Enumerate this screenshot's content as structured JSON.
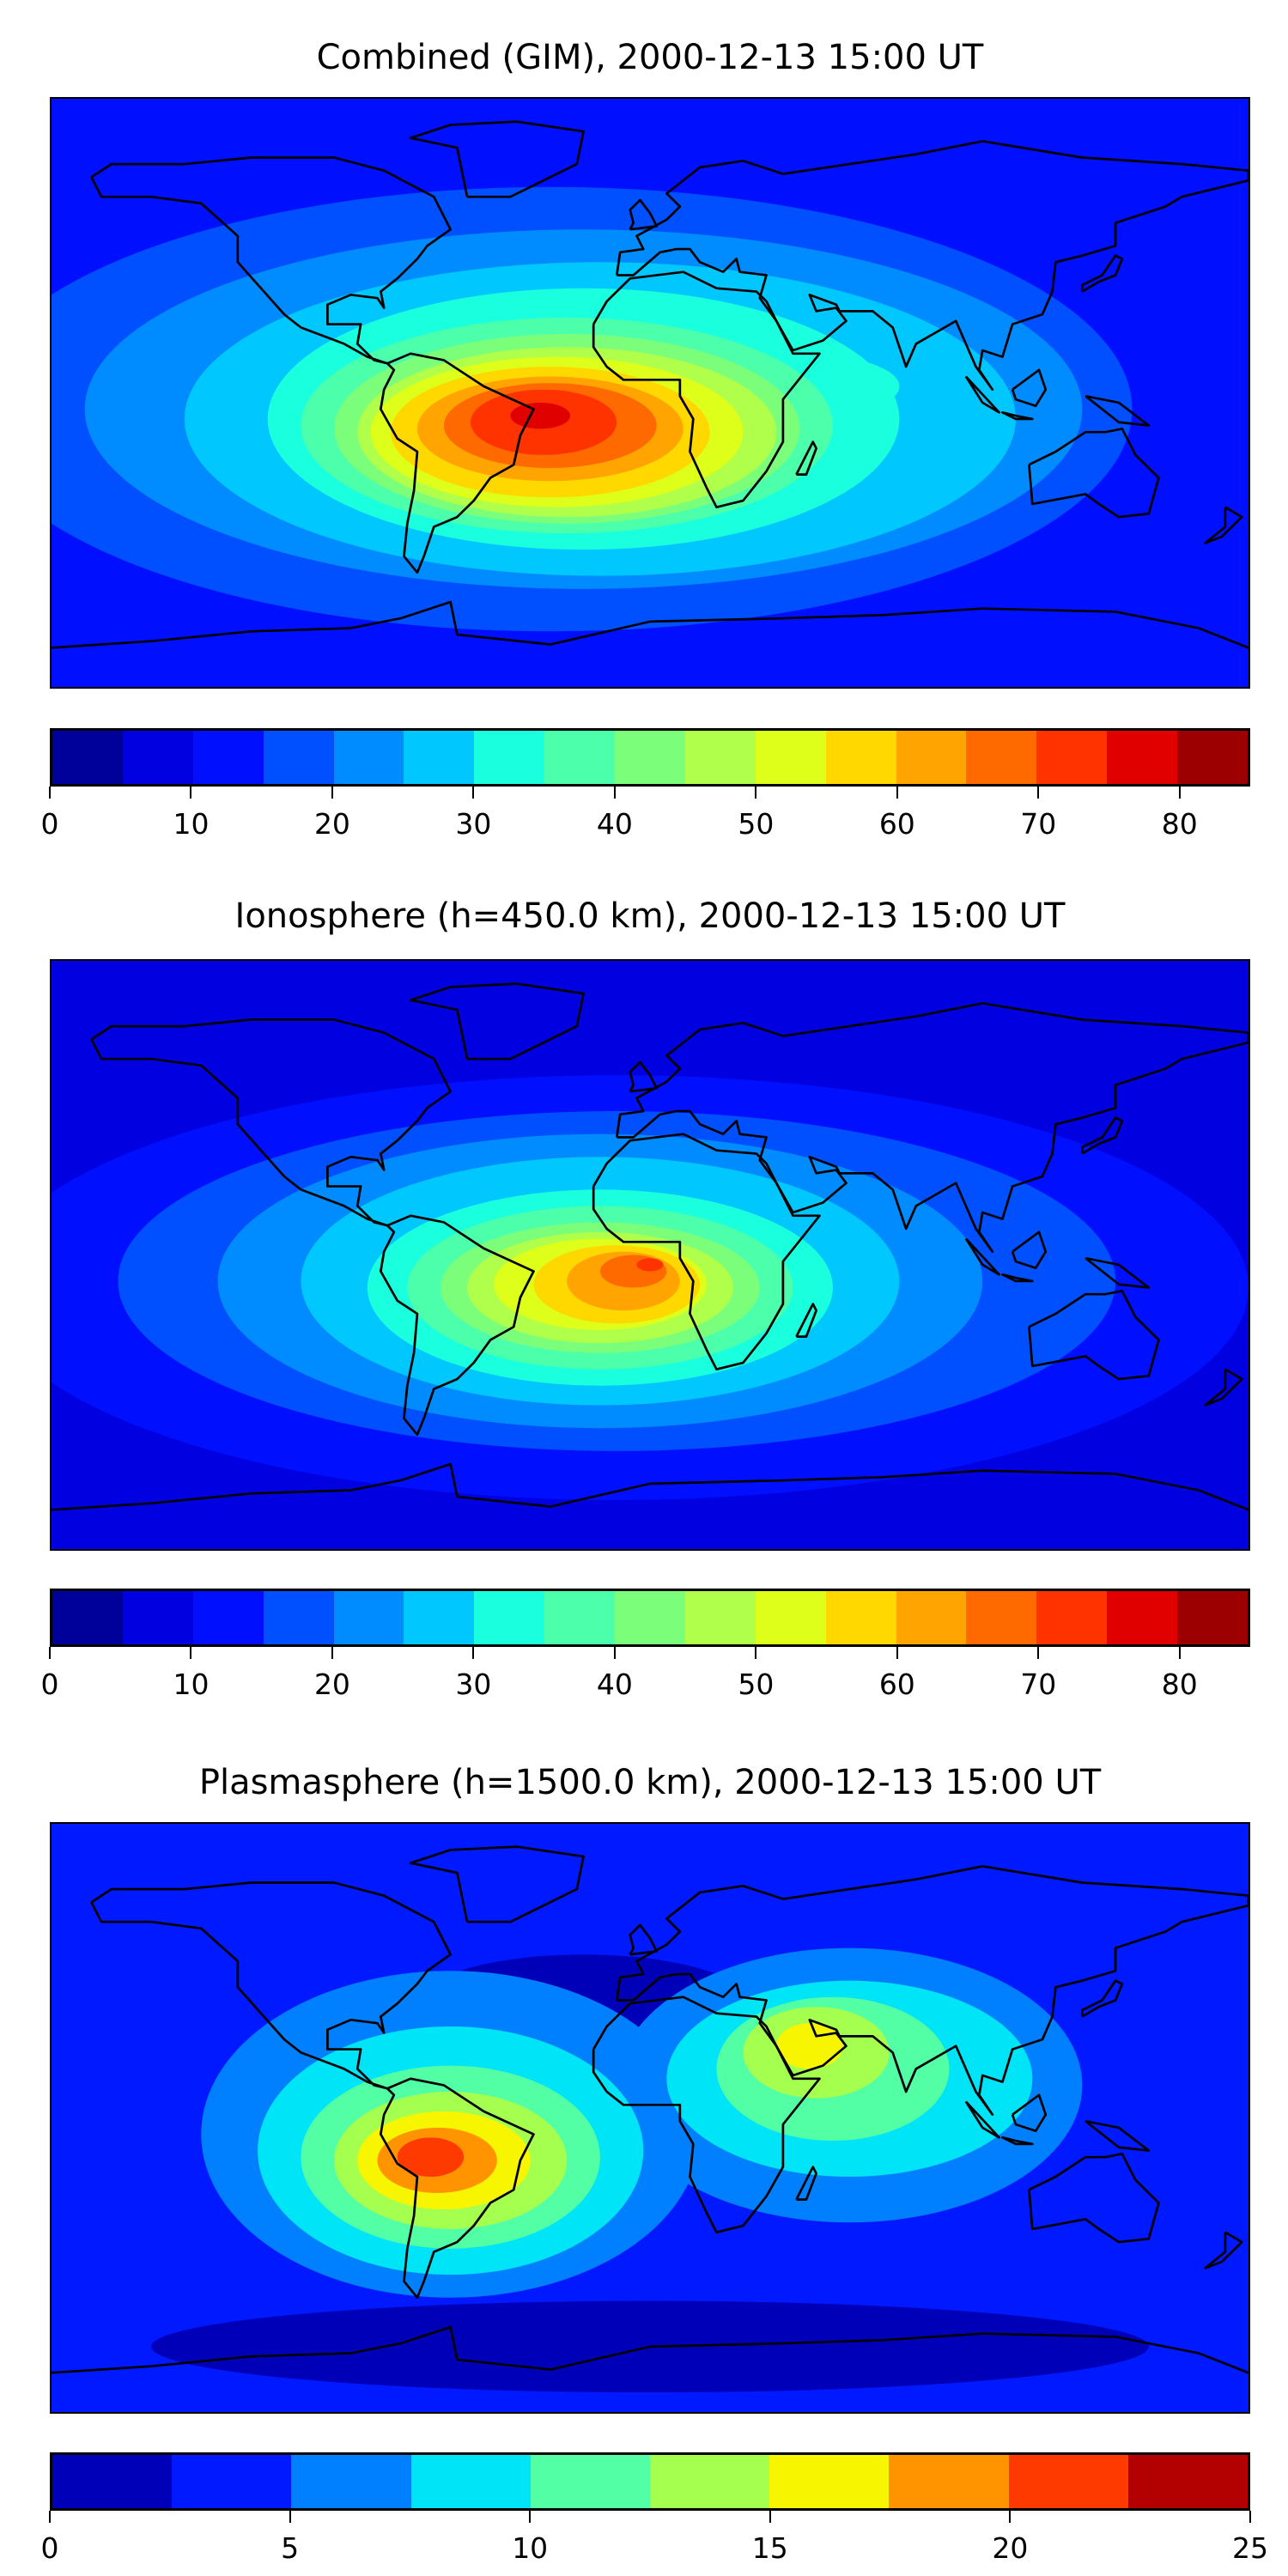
{
  "chart_data": [
    {
      "type": "heatmap",
      "title": "Combined (GIM), 2000-12-13 15:00 UT",
      "projection": "plate-carree",
      "lon_range": [
        -180,
        180
      ],
      "lat_range": [
        -90,
        90
      ],
      "levels": [
        0,
        5,
        10,
        15,
        20,
        25,
        30,
        35,
        40,
        45,
        50,
        55,
        60,
        65,
        70,
        75,
        80,
        85
      ],
      "colors": [
        "#00009a",
        "#0000e0",
        "#0010ff",
        "#0050ff",
        "#008cff",
        "#00c8ff",
        "#1affdd",
        "#4cffaa",
        "#7bff7b",
        "#b0ff4a",
        "#deff1a",
        "#ffd800",
        "#ffa400",
        "#ff6a00",
        "#ff3300",
        "#e00000",
        "#9c0000"
      ],
      "tick_labels": [
        "0",
        "10",
        "20",
        "30",
        "40",
        "50",
        "60",
        "70",
        "80"
      ],
      "ticks": [
        0,
        10,
        20,
        30,
        40,
        50,
        60,
        70,
        80
      ],
      "background_level": 2,
      "blobs": [
        {
          "lon": -30,
          "lat": -5,
          "rlon": 175,
          "rlat": 68,
          "level": 3
        },
        {
          "lon": -20,
          "lat": -5,
          "rlon": 150,
          "rlat": 55,
          "level": 4
        },
        {
          "lon": -15,
          "lat": -8,
          "rlon": 125,
          "rlat": 48,
          "level": 5
        },
        {
          "lon": -20,
          "lat": -8,
          "rlon": 95,
          "rlat": 40,
          "level": 6
        },
        {
          "lon": 45,
          "lat": 2,
          "rlon": 30,
          "rlat": 10,
          "level": 6
        },
        {
          "lon": -25,
          "lat": -10,
          "rlon": 80,
          "rlat": 33,
          "level": 7
        },
        {
          "lon": -25,
          "lat": -11,
          "rlon": 70,
          "rlat": 29,
          "level": 8
        },
        {
          "lon": -25,
          "lat": -12,
          "rlon": 63,
          "rlat": 26,
          "level": 9
        },
        {
          "lon": -28,
          "lat": -12,
          "rlon": 56,
          "rlat": 23,
          "level": 10
        },
        {
          "lon": -30,
          "lat": -12,
          "rlon": 48,
          "rlat": 20,
          "level": 11
        },
        {
          "lon": -30,
          "lat": -11,
          "rlon": 40,
          "rlat": 16,
          "level": 12
        },
        {
          "lon": -30,
          "lat": -10,
          "rlon": 32,
          "rlat": 13,
          "level": 13
        },
        {
          "lon": -32,
          "lat": -9,
          "rlon": 22,
          "rlat": 10,
          "level": 14
        },
        {
          "lon": -33,
          "lat": -7,
          "rlon": 9,
          "rlat": 4,
          "level": 15
        }
      ]
    },
    {
      "type": "heatmap",
      "title": "Ionosphere  (h=450.0 km), 2000-12-13 15:00 UT",
      "projection": "plate-carree",
      "lon_range": [
        -180,
        180
      ],
      "lat_range": [
        -90,
        90
      ],
      "levels": [
        0,
        5,
        10,
        15,
        20,
        25,
        30,
        35,
        40,
        45,
        50,
        55,
        60,
        65,
        70,
        75,
        80,
        85
      ],
      "colors": [
        "#00009a",
        "#0000e0",
        "#0010ff",
        "#0050ff",
        "#008cff",
        "#00c8ff",
        "#1affdd",
        "#4cffaa",
        "#7bff7b",
        "#b0ff4a",
        "#deff1a",
        "#ffd800",
        "#ffa400",
        "#ff6a00",
        "#ff3300",
        "#e00000",
        "#9c0000"
      ],
      "tick_labels": [
        "0",
        "10",
        "20",
        "30",
        "40",
        "50",
        "60",
        "70",
        "80"
      ],
      "ticks": [
        0,
        10,
        20,
        30,
        40,
        50,
        60,
        70,
        80
      ],
      "background_level": 1,
      "blobs": [
        {
          "lon": -10,
          "lat": -10,
          "rlon": 190,
          "rlat": 65,
          "level": 2
        },
        {
          "lon": -10,
          "lat": -8,
          "rlon": 150,
          "rlat": 52,
          "level": 3
        },
        {
          "lon": -15,
          "lat": -8,
          "rlon": 115,
          "rlat": 45,
          "level": 4
        },
        {
          "lon": -15,
          "lat": -8,
          "rlon": 90,
          "rlat": 38,
          "level": 5
        },
        {
          "lon": -15,
          "lat": -10,
          "rlon": 70,
          "rlat": 30,
          "level": 6
        },
        {
          "lon": -15,
          "lat": -10,
          "rlon": 58,
          "rlat": 25,
          "level": 7
        },
        {
          "lon": -15,
          "lat": -10,
          "rlon": 48,
          "rlat": 20,
          "level": 8
        },
        {
          "lon": -15,
          "lat": -10,
          "rlon": 40,
          "rlat": 17,
          "level": 9
        },
        {
          "lon": -15,
          "lat": -9,
          "rlon": 32,
          "rlat": 14,
          "level": 10
        },
        {
          "lon": -10,
          "lat": -9,
          "rlon": 25,
          "rlat": 12,
          "level": 11
        },
        {
          "lon": -8,
          "lat": -8,
          "rlon": 17,
          "rlat": 9,
          "level": 12
        },
        {
          "lon": -5,
          "lat": -5,
          "rlon": 10,
          "rlat": 5,
          "level": 13
        },
        {
          "lon": 0,
          "lat": -3,
          "rlon": 4,
          "rlat": 2,
          "level": 14
        }
      ]
    },
    {
      "type": "heatmap",
      "title": "Plasmasphere (h=1500.0 km), 2000-12-13 15:00 UT",
      "projection": "plate-carree",
      "lon_range": [
        -180,
        180
      ],
      "lat_range": [
        -90,
        90
      ],
      "levels": [
        0,
        2.5,
        5,
        7.5,
        10,
        12.5,
        15,
        17.5,
        20,
        22.5,
        25
      ],
      "colors": [
        "#0000b8",
        "#0019ff",
        "#0080ff",
        "#00e4f8",
        "#52ffa4",
        "#a4ff4f",
        "#f8f500",
        "#ff9400",
        "#ff3a00",
        "#b30000"
      ],
      "tick_labels": [
        "0",
        "5",
        "10",
        "15",
        "20",
        "25"
      ],
      "ticks": [
        0,
        5,
        10,
        15,
        20,
        25
      ],
      "background_level": 1,
      "blobs": [
        {
          "lon": 0,
          "lat": -70,
          "rlon": 150,
          "rlat": 14,
          "level": 0
        },
        {
          "lon": -20,
          "lat": 35,
          "rlon": 50,
          "rlat": 15,
          "level": 0
        },
        {
          "lon": -60,
          "lat": -5,
          "rlon": 75,
          "rlat": 50,
          "level": 2
        },
        {
          "lon": 60,
          "lat": 10,
          "rlon": 70,
          "rlat": 42,
          "level": 2
        },
        {
          "lon": -60,
          "lat": -10,
          "rlon": 58,
          "rlat": 38,
          "level": 3
        },
        {
          "lon": 60,
          "lat": 12,
          "rlon": 55,
          "rlat": 30,
          "level": 3
        },
        {
          "lon": -60,
          "lat": -12,
          "rlon": 45,
          "rlat": 28,
          "level": 4
        },
        {
          "lon": 55,
          "lat": 15,
          "rlon": 35,
          "rlat": 22,
          "level": 4
        },
        {
          "lon": -60,
          "lat": -13,
          "rlon": 35,
          "rlat": 21,
          "level": 5
        },
        {
          "lon": 50,
          "lat": 20,
          "rlon": 22,
          "rlat": 14,
          "level": 5
        },
        {
          "lon": -62,
          "lat": -13,
          "rlon": 26,
          "rlat": 15,
          "level": 6
        },
        {
          "lon": 48,
          "lat": 22,
          "rlon": 10,
          "rlat": 7,
          "level": 6
        },
        {
          "lon": -64,
          "lat": -13,
          "rlon": 18,
          "rlat": 10,
          "level": 7
        },
        {
          "lon": -66,
          "lat": -12,
          "rlon": 10,
          "rlat": 6,
          "level": 8
        }
      ]
    }
  ]
}
